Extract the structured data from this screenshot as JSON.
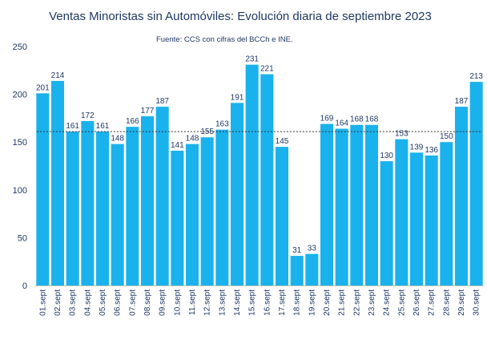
{
  "chart_data": {
    "type": "bar",
    "title": "Ventas Minoristas sin Automóviles: Evolución diaria de septiembre 2023",
    "subtitle": "Fuente: CCS con cifras del BCCh e INE.",
    "xlabel": "",
    "ylabel": "",
    "categories": [
      "01.sept",
      "02.sept",
      "03.sept",
      "04.sept",
      "05.sept",
      "06.sept",
      "07.sept",
      "08.sept",
      "09.sept",
      "10.sept",
      "11.sept",
      "12.sept",
      "13.sept",
      "14.sept",
      "15.sept",
      "16.sept",
      "17.sept",
      "18.sept",
      "19.sept",
      "20.sept",
      "21.sept",
      "22.sept",
      "23.sept",
      "24.sept",
      "25.sept",
      "26.sept",
      "27.sept",
      "28.sept",
      "29.sept",
      "30.sept"
    ],
    "values": [
      201,
      214,
      161,
      172,
      161,
      148,
      166,
      177,
      187,
      141,
      148,
      155,
      163,
      191,
      231,
      221,
      145,
      31,
      33,
      169,
      164,
      168,
      168,
      130,
      153,
      139,
      136,
      150,
      187,
      213
    ],
    "reference_line": 161,
    "ylim": [
      0,
      250
    ],
    "yticks": [
      0,
      50,
      100,
      150,
      200,
      250
    ],
    "grid": false,
    "legend": "none",
    "colors": {
      "bar": "#1ab2ec",
      "text": "#1f3864",
      "axis": "#bfbfbf",
      "reference_line": "#333333"
    }
  }
}
